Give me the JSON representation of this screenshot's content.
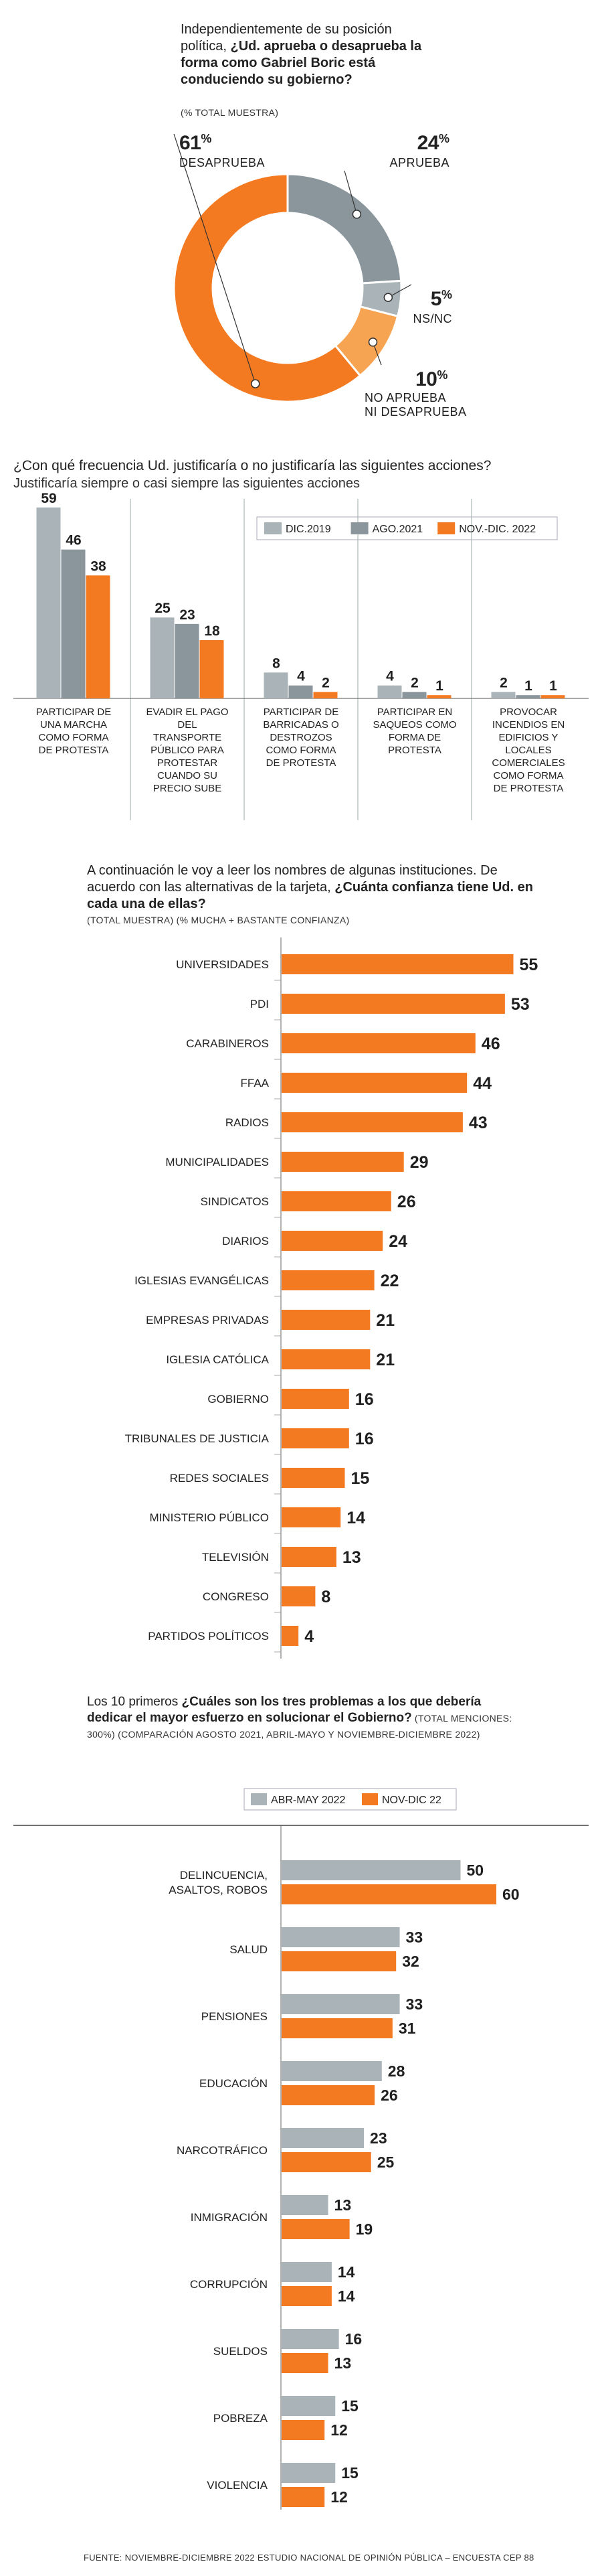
{
  "colors": {
    "gray": "#8a969c",
    "lightgray": "#aab4b8",
    "orange": "#f47a22",
    "lightorange": "#f7a452",
    "text": "#222222"
  },
  "section1": {
    "question_pre": "Independientemente de su posición política, ",
    "question_bold": "¿Ud. aprueba o desaprueba la forma como Gabriel Boric está conduciendo su gobierno?",
    "subtitle": "(% TOTAL MUESTRA)",
    "chart_data": {
      "type": "pie",
      "slices": [
        {
          "label": "APRUEBA",
          "value": 24,
          "color": "#8a969c"
        },
        {
          "label": "NS/NC",
          "value": 5,
          "color": "#aab4b8"
        },
        {
          "label": "NO APRUEBA NI DESAPRUEBA",
          "value": 10,
          "color": "#f7a452"
        },
        {
          "label": "DESAPRUEBA",
          "value": 61,
          "color": "#f47a22"
        }
      ]
    },
    "labels": {
      "aprueba_num": "24",
      "aprueba_label": "APRUEBA",
      "nsnc_num": "5",
      "nsnc_label": "NS/NC",
      "ni_num": "10",
      "ni_label_1": "NO APRUEBA",
      "ni_label_2": "NI DESAPRUEBA",
      "desaprueba_num": "61",
      "desaprueba_label": "DESAPRUEBA",
      "pct_sign": "%"
    }
  },
  "section2": {
    "question": "¿Con qué frecuencia Ud. justificaría o no justificaría las siguientes acciones?",
    "subtitle": "Justificaría siempre o casi siempre las siguientes acciones",
    "chart_data": {
      "type": "bar",
      "categories": [
        "PARTICIPAR DE UNA MARCHA COMO FORMA DE PROTESTA",
        "EVADIR EL PAGO DEL TRANSPORTE PÚBLICO PARA PROTESTAR CUANDO SU PRECIO SUBE",
        "PARTICIPAR DE BARRICADAS O DESTROZOS COMO FORMA DE PROTESTA",
        "PARTICIPAR EN SAQUEOS COMO FORMA DE PROTESTA",
        "PROVOCAR INCENDIOS EN EDIFICIOS Y LOCALES COMERCIALES COMO FORMA DE PROTESTA"
      ],
      "category_lines": [
        [
          "PARTICIPAR DE",
          "UNA MARCHA",
          "COMO FORMA",
          "DE PROTESTA"
        ],
        [
          "EVADIR EL PAGO",
          "DEL",
          "TRANSPORTE",
          "PÚBLICO PARA",
          "PROTESTAR",
          "CUANDO SU",
          "PRECIO SUBE"
        ],
        [
          "PARTICIPAR DE",
          "BARRICADAS O",
          "DESTROZOS",
          "COMO FORMA",
          "DE PROTESTA"
        ],
        [
          "PARTICIPAR EN",
          "SAQUEOS COMO",
          "FORMA DE",
          "PROTESTA"
        ],
        [
          "PROVOCAR",
          "INCENDIOS EN",
          "EDIFICIOS Y",
          "LOCALES",
          "COMERCIALES",
          "COMO FORMA",
          "DE PROTESTA"
        ]
      ],
      "series": [
        {
          "name": "DIC.2019",
          "values": [
            59,
            25,
            8,
            4,
            2
          ],
          "color": "#aab4b8"
        },
        {
          "name": "AGO.2021",
          "values": [
            46,
            23,
            4,
            2,
            1
          ],
          "color": "#8a969c"
        },
        {
          "name": "NOV.-DIC. 2022",
          "values": [
            38,
            18,
            2,
            1,
            1
          ],
          "color": "#f47a22"
        }
      ],
      "legend": "top-right"
    }
  },
  "section3": {
    "intro": "A continuación le voy a leer los nombres de algunas instituciones. De acuerdo con las alternativas de la tarjeta,",
    "question_bold": "¿Cuánta confianza tiene Ud. en cada una de ellas?",
    "subtitle": "(TOTAL MUESTRA) (% MUCHA + BASTANTE CONFIANZA)",
    "chart_data": {
      "type": "bar",
      "orientation": "horizontal",
      "categories": [
        "UNIVERSIDADES",
        "PDI",
        "CARABINEROS",
        "FFAA",
        "RADIOS",
        "MUNICIPALIDADES",
        "SINDICATOS",
        "DIARIOS",
        "IGLESIAS EVANGÉLICAS",
        "EMPRESAS PRIVADAS",
        "IGLESIA CATÓLICA",
        "GOBIERNO",
        "TRIBUNALES DE JUSTICIA",
        "REDES SOCIALES",
        "MINISTERIO PÚBLICO",
        "TELEVISIÓN",
        "CONGRESO",
        "PARTIDOS POLÍTICOS"
      ],
      "values": [
        55,
        53,
        46,
        44,
        43,
        29,
        26,
        24,
        22,
        21,
        21,
        16,
        16,
        15,
        14,
        13,
        8,
        4
      ],
      "color": "#f47a22"
    }
  },
  "section4": {
    "intro": "Los 10 primeros ",
    "question_bold": "¿Cuáles son los tres problemas a los que debería dedicar el mayor esfuerzo en solucionar el Gobierno?",
    "subtitle_inline": " (TOTAL MENCIONES: 300%) (COMPARACIÓN AGOSTO 2021, ABRIL-MAYO Y NOVIEMBRE-DICIEMBRE 2022)",
    "chart_data": {
      "type": "bar",
      "orientation": "horizontal",
      "categories": [
        "DELINCUENCIA, ASALTOS, ROBOS",
        "SALUD",
        "PENSIONES",
        "EDUCACIÓN",
        "NARCOTRÁFICO",
        "INMIGRACIÓN",
        "CORRUPCIÓN",
        "SUELDOS",
        "POBREZA",
        "VIOLENCIA"
      ],
      "category_lines": [
        [
          "DELINCUENCIA,",
          "ASALTOS, ROBOS"
        ],
        [
          "SALUD"
        ],
        [
          "PENSIONES"
        ],
        [
          "EDUCACIÓN"
        ],
        [
          "NARCOTRÁFICO"
        ],
        [
          "INMIGRACIÓN"
        ],
        [
          "CORRUPCIÓN"
        ],
        [
          "SUELDOS"
        ],
        [
          "POBREZA"
        ],
        [
          "VIOLENCIA"
        ]
      ],
      "series": [
        {
          "name": "ABR-MAY 2022",
          "values": [
            50,
            33,
            33,
            28,
            23,
            13,
            14,
            16,
            15,
            15
          ],
          "color": "#aab4b8"
        },
        {
          "name": "NOV-DIC 22",
          "values": [
            60,
            32,
            31,
            26,
            25,
            19,
            14,
            13,
            12,
            12
          ],
          "color": "#f47a22"
        }
      ],
      "legend": "top"
    }
  },
  "footer": "FUENTE: NOVIEMBRE-DICIEMBRE 2022 ESTUDIO NACIONAL DE OPINIÓN PÚBLICA – ENCUESTA CEP 88"
}
